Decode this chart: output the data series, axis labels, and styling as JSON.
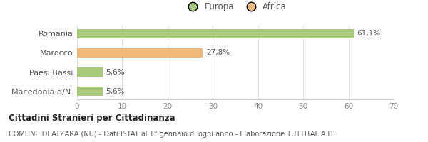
{
  "categories": [
    "Romania",
    "Marocco",
    "Paesi Bassi",
    "Macedonia d/N."
  ],
  "values": [
    61.1,
    27.8,
    5.6,
    5.6
  ],
  "bar_colors": [
    "#a8c87a",
    "#f0b97a",
    "#a8c87a",
    "#a8c87a"
  ],
  "bar_labels": [
    "61,1%",
    "27,8%",
    "5,6%",
    "5,6%"
  ],
  "legend_labels": [
    "Europa",
    "Africa"
  ],
  "legend_colors": [
    "#a8c87a",
    "#f0b97a"
  ],
  "xlim": [
    0,
    70
  ],
  "xticks": [
    0,
    10,
    20,
    30,
    40,
    50,
    60,
    70
  ],
  "title_bold": "Cittadini Stranieri per Cittadinanza",
  "subtitle": "COMUNE DI ATZARA (NU) - Dati ISTAT al 1° gennaio di ogni anno - Elaborazione TUTTITALIA.IT",
  "background_color": "#ffffff",
  "bar_height": 0.5
}
